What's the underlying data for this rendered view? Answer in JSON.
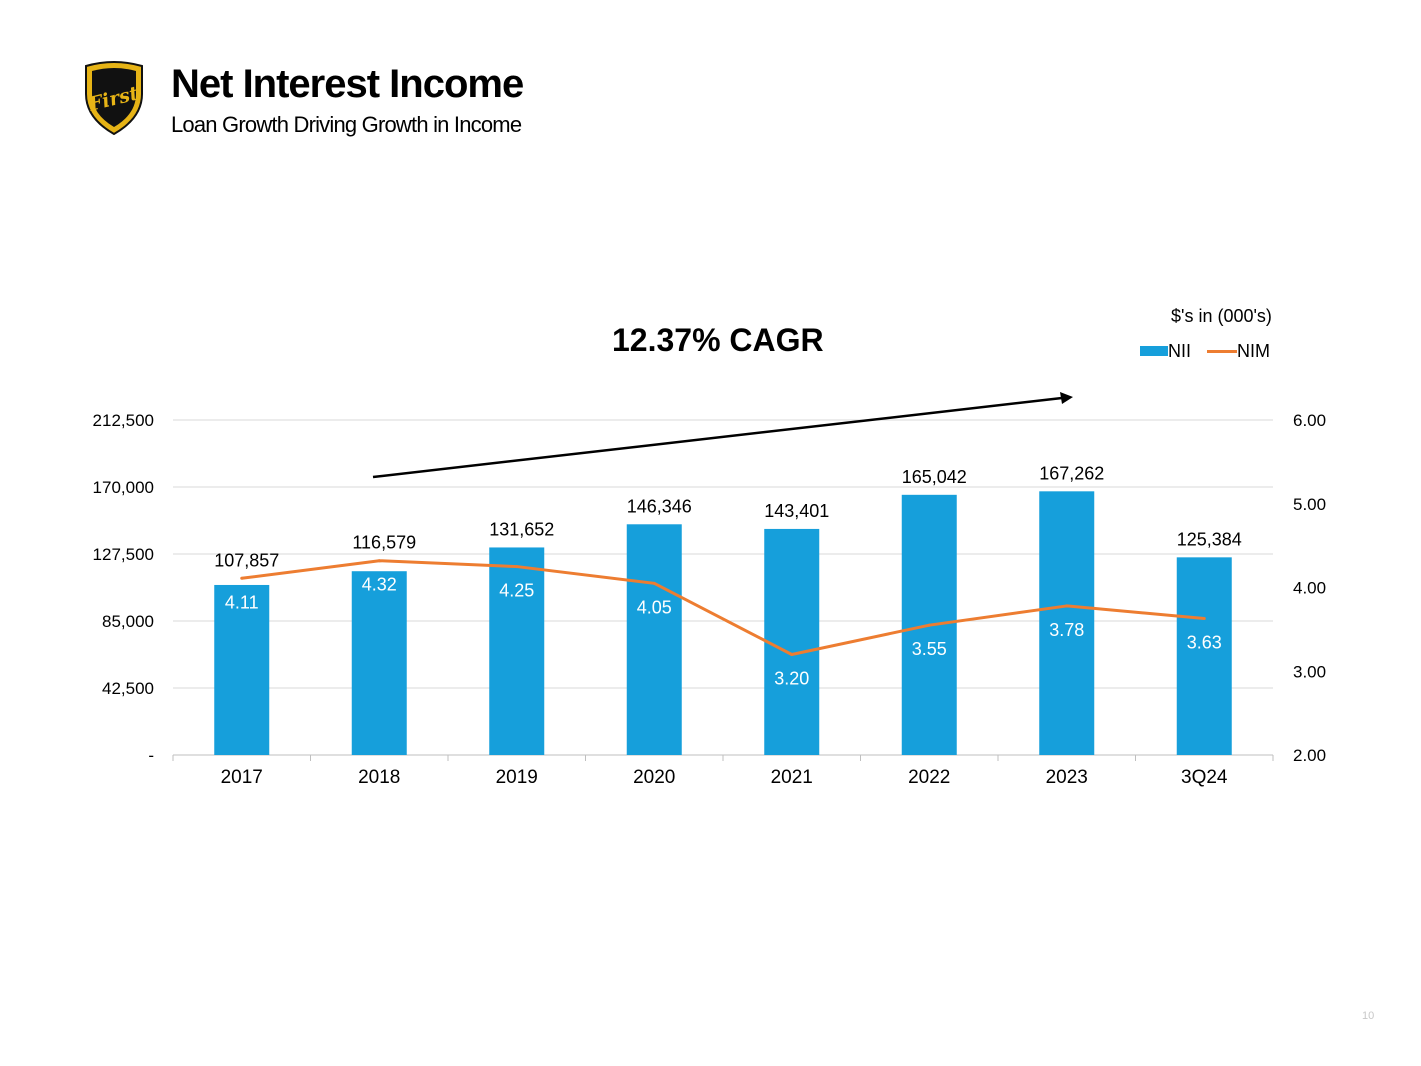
{
  "header": {
    "title": "Net Interest Income",
    "subtitle": "Loan Growth Driving Growth in Income",
    "logo_text": "First"
  },
  "annotation": {
    "cagr": "12.37% CAGR",
    "units": "$'s in (000's)"
  },
  "page_number": "10",
  "colors": {
    "nii_bar": "#169fdb",
    "nim_line": "#ed7d31",
    "grid": "#d9d9d9"
  },
  "chart_data": {
    "type": "bar",
    "categories": [
      "2017",
      "2018",
      "2019",
      "2020",
      "2021",
      "2022",
      "2023",
      "3Q24"
    ],
    "series": [
      {
        "name": "NII",
        "type": "bar",
        "axis": "left",
        "values": [
          107857,
          116579,
          131652,
          146346,
          143401,
          165042,
          167262,
          125384
        ],
        "labels": [
          "107,857",
          "116,579",
          "131,652",
          "146,346",
          "143,401",
          "165,042",
          "167,262",
          "125,384"
        ]
      },
      {
        "name": "NIM",
        "type": "line",
        "axis": "right",
        "values": [
          4.11,
          4.32,
          4.25,
          4.05,
          3.2,
          3.55,
          3.78,
          3.63
        ],
        "labels": [
          "4.11",
          "4.32",
          "4.25",
          "4.05",
          "3.20",
          "3.55",
          "3.78",
          "3.63"
        ]
      }
    ],
    "left_axis": {
      "ylim": [
        0,
        212500
      ],
      "ticks": [
        0,
        42500,
        85000,
        127500,
        170000,
        212500
      ],
      "tick_labels": [
        "-",
        "42,500",
        "85,000",
        "127,500",
        "170,000",
        "212,500"
      ]
    },
    "right_axis": {
      "ylim": [
        2.0,
        6.0
      ],
      "ticks": [
        2.0,
        3.0,
        4.0,
        5.0,
        6.0
      ],
      "tick_labels": [
        "2.00",
        "3.00",
        "4.00",
        "5.00",
        "6.00"
      ]
    },
    "legend": [
      "NII",
      "NIM"
    ],
    "legend_position": "top-right",
    "grid": true
  }
}
